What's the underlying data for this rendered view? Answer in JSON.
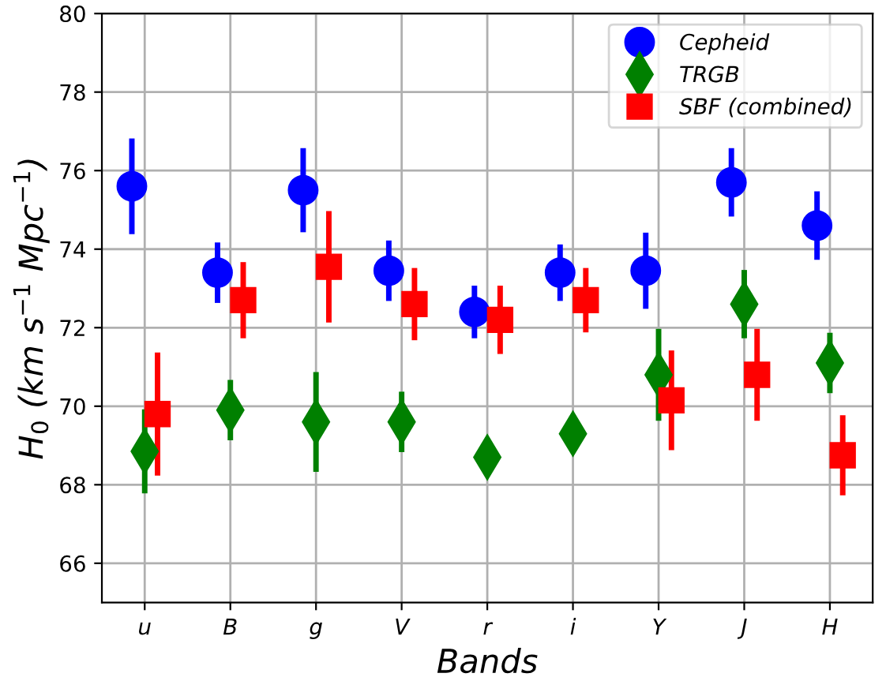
{
  "chart_data": {
    "type": "scatter",
    "xlabel": "Bands",
    "ylabel": "H$_{0}$ (km s$^{−1}$ Mpc$^{−1}$)",
    "categories": [
      "u",
      "B",
      "g",
      "V",
      "r",
      "i",
      "Y",
      "J",
      "H"
    ],
    "ylim": [
      65,
      80
    ],
    "yticks": [
      66,
      68,
      70,
      72,
      74,
      76,
      78,
      80
    ],
    "grid": true,
    "legend": "top right",
    "series": [
      {
        "name": "Cepheid",
        "color": "#0000ff",
        "marker": "circle",
        "values": [
          75.6,
          73.4,
          75.5,
          73.45,
          72.4,
          73.4,
          73.45,
          75.7,
          74.6
        ],
        "errors": [
          1.15,
          0.7,
          1.0,
          0.7,
          0.6,
          0.65,
          0.9,
          0.8,
          0.8
        ]
      },
      {
        "name": "TRGB",
        "color": "#008000",
        "marker": "diamond",
        "values": [
          68.85,
          69.9,
          69.6,
          69.6,
          68.7,
          69.3,
          70.8,
          72.6,
          71.1
        ],
        "errors": [
          1.0,
          0.7,
          1.2,
          0.7,
          null,
          null,
          1.1,
          0.8,
          0.7
        ]
      },
      {
        "name": "SBF (combined)",
        "color": "#ff0000",
        "marker": "square",
        "values": [
          69.8,
          72.7,
          73.55,
          72.6,
          72.2,
          72.7,
          70.15,
          70.8,
          68.75
        ],
        "errors": [
          1.5,
          0.9,
          1.35,
          0.85,
          0.8,
          0.75,
          1.2,
          1.1,
          0.95
        ]
      }
    ]
  }
}
